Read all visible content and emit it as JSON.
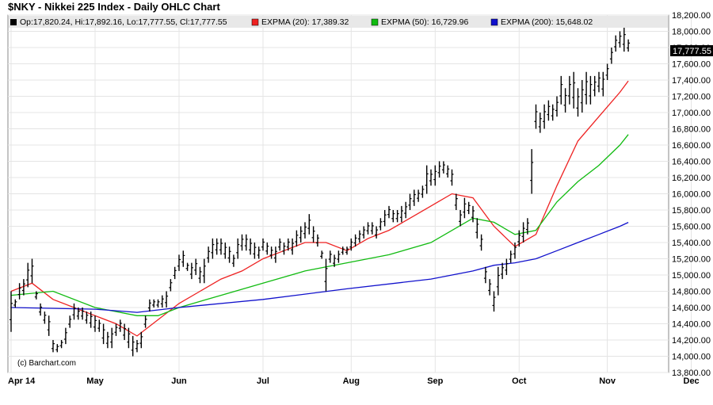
{
  "header": {
    "title": "$NKY - Nikkei 225 Index - Daily OHLC Chart"
  },
  "legend": {
    "ohlc": {
      "label": "Op:17,820.24, Hi:17,892.16, Lo:17,777.55, Cl:17,777.55",
      "color": "#000000"
    },
    "ema20": {
      "label": "EXPMA (20): 17,389.32",
      "color": "#ee2222"
    },
    "ema50": {
      "label": "EXPMA (50): 16,729.96",
      "color": "#11bb11"
    },
    "ema200": {
      "label": "EXPMA (200): 15,648.02",
      "color": "#1111cc"
    }
  },
  "last_price_label": "17,777.55",
  "copyright": "(c) Barchart.com",
  "chart_data": {
    "type": "ohlc",
    "ylim": [
      13800,
      18200
    ],
    "y_ticks": [
      {
        "value": 13800,
        "label": "13,800.00"
      },
      {
        "value": 14000,
        "label": "14,000.00"
      },
      {
        "value": 14200,
        "label": "14,200.00"
      },
      {
        "value": 14400,
        "label": "14,400.00"
      },
      {
        "value": 14600,
        "label": "14,600.00"
      },
      {
        "value": 14800,
        "label": "14,800.00"
      },
      {
        "value": 15000,
        "label": "15,000.00"
      },
      {
        "value": 15200,
        "label": "15,200.00"
      },
      {
        "value": 15400,
        "label": "15,400.00"
      },
      {
        "value": 15600,
        "label": "15,600.00"
      },
      {
        "value": 15800,
        "label": "15,800.00"
      },
      {
        "value": 16000,
        "label": "16,000.00"
      },
      {
        "value": 16200,
        "label": "16,200.00"
      },
      {
        "value": 16400,
        "label": "16,400.00"
      },
      {
        "value": 16600,
        "label": "16,600.00"
      },
      {
        "value": 16800,
        "label": "16,800.00"
      },
      {
        "value": 17000,
        "label": "17,000.00"
      },
      {
        "value": 17200,
        "label": "17,200.00"
      },
      {
        "value": 17400,
        "label": "17,400.00"
      },
      {
        "value": 17600,
        "label": "17,600.00"
      },
      {
        "value": 17800,
        "label": "17,800.00"
      },
      {
        "value": 18000,
        "label": "18,000.00"
      },
      {
        "value": 18200,
        "label": "18,200.00"
      }
    ],
    "x_ticks": [
      {
        "label": "Apr 14",
        "index": 0
      },
      {
        "label": "May",
        "index": 20
      },
      {
        "label": "Jun",
        "index": 40
      },
      {
        "label": "Jul",
        "index": 60
      },
      {
        "label": "Aug",
        "index": 81
      },
      {
        "label": "Sep",
        "index": 101
      },
      {
        "label": "Oct",
        "index": 121
      },
      {
        "label": "Nov",
        "index": 142
      },
      {
        "label": "Dec",
        "index": 162
      }
    ],
    "ohlc_points": [
      [
        0,
        14300,
        14800
      ],
      [
        1,
        14600,
        14700
      ],
      [
        2,
        14700,
        14900
      ],
      [
        3,
        14750,
        14950
      ],
      [
        4,
        14850,
        15150
      ],
      [
        5,
        14900,
        15200
      ],
      [
        6,
        14700,
        14800
      ],
      [
        7,
        14500,
        14650
      ],
      [
        8,
        14400,
        14550
      ],
      [
        9,
        14250,
        14500
      ],
      [
        10,
        14050,
        14200
      ],
      [
        11,
        14050,
        14150
      ],
      [
        12,
        14100,
        14200
      ],
      [
        13,
        14150,
        14350
      ],
      [
        14,
        14350,
        14500
      ],
      [
        15,
        14450,
        14650
      ],
      [
        16,
        14450,
        14600
      ],
      [
        17,
        14450,
        14600
      ],
      [
        18,
        14400,
        14550
      ],
      [
        19,
        14350,
        14550
      ],
      [
        20,
        14300,
        14500
      ],
      [
        21,
        14300,
        14450
      ],
      [
        22,
        14150,
        14400
      ],
      [
        23,
        14100,
        14300
      ],
      [
        24,
        14100,
        14350
      ],
      [
        25,
        14250,
        14400
      ],
      [
        26,
        14300,
        14450
      ],
      [
        27,
        14200,
        14400
      ],
      [
        28,
        14100,
        14350
      ],
      [
        29,
        14000,
        14250
      ],
      [
        30,
        14050,
        14200
      ],
      [
        31,
        14100,
        14300
      ],
      [
        32,
        14350,
        14500
      ],
      [
        33,
        14550,
        14700
      ],
      [
        34,
        14600,
        14700
      ],
      [
        35,
        14600,
        14700
      ],
      [
        36,
        14600,
        14750
      ],
      [
        37,
        14600,
        14800
      ],
      [
        38,
        14800,
        14950
      ],
      [
        39,
        14950,
        15100
      ],
      [
        40,
        15050,
        15250
      ],
      [
        41,
        15100,
        15300
      ],
      [
        42,
        15050,
        15150
      ],
      [
        43,
        14950,
        15150
      ],
      [
        44,
        15000,
        15200
      ],
      [
        45,
        14900,
        15100
      ],
      [
        46,
        14900,
        15200
      ],
      [
        47,
        15150,
        15350
      ],
      [
        48,
        15200,
        15450
      ],
      [
        49,
        15250,
        15450
      ],
      [
        50,
        15250,
        15450
      ],
      [
        51,
        15200,
        15400
      ],
      [
        52,
        15150,
        15350
      ],
      [
        53,
        15100,
        15250
      ],
      [
        54,
        15200,
        15450
      ],
      [
        55,
        15300,
        15500
      ],
      [
        56,
        15300,
        15500
      ],
      [
        57,
        15250,
        15450
      ],
      [
        58,
        15200,
        15400
      ],
      [
        59,
        15200,
        15350
      ],
      [
        60,
        15300,
        15450
      ],
      [
        61,
        15250,
        15400
      ],
      [
        62,
        15200,
        15350
      ],
      [
        63,
        15150,
        15350
      ],
      [
        64,
        15300,
        15450
      ],
      [
        65,
        15250,
        15400
      ],
      [
        66,
        15300,
        15450
      ],
      [
        67,
        15250,
        15450
      ],
      [
        68,
        15350,
        15550
      ],
      [
        69,
        15400,
        15600
      ],
      [
        70,
        15450,
        15650
      ],
      [
        71,
        15500,
        15750
      ],
      [
        72,
        15400,
        15600
      ],
      [
        73,
        15350,
        15500
      ],
      [
        74,
        15200,
        15300
      ],
      [
        75,
        14800,
        15200
      ],
      [
        76,
        15150,
        15300
      ],
      [
        77,
        15100,
        15250
      ],
      [
        78,
        15150,
        15300
      ],
      [
        79,
        15250,
        15350
      ],
      [
        80,
        15250,
        15350
      ],
      [
        81,
        15300,
        15450
      ],
      [
        82,
        15350,
        15500
      ],
      [
        83,
        15400,
        15550
      ],
      [
        84,
        15450,
        15600
      ],
      [
        85,
        15500,
        15650
      ],
      [
        86,
        15500,
        15650
      ],
      [
        87,
        15450,
        15600
      ],
      [
        88,
        15550,
        15700
      ],
      [
        89,
        15600,
        15800
      ],
      [
        90,
        15700,
        15850
      ],
      [
        91,
        15650,
        15800
      ],
      [
        92,
        15650,
        15800
      ],
      [
        93,
        15650,
        15850
      ],
      [
        94,
        15700,
        15900
      ],
      [
        95,
        15800,
        16000
      ],
      [
        96,
        15850,
        16050
      ],
      [
        97,
        15900,
        16050
      ],
      [
        98,
        15950,
        16100
      ],
      [
        99,
        16000,
        16350
      ],
      [
        100,
        16100,
        16300
      ],
      [
        101,
        16100,
        16350
      ],
      [
        102,
        16200,
        16400
      ],
      [
        103,
        16250,
        16400
      ],
      [
        104,
        16200,
        16350
      ],
      [
        105,
        16100,
        16300
      ],
      [
        106,
        15800,
        16000
      ],
      [
        107,
        15600,
        15800
      ],
      [
        108,
        15700,
        15950
      ],
      [
        109,
        15750,
        15900
      ],
      [
        110,
        15650,
        15850
      ],
      [
        111,
        15450,
        15700
      ],
      [
        112,
        15300,
        15500
      ],
      [
        113,
        14900,
        15100
      ],
      [
        114,
        14750,
        14950
      ],
      [
        115,
        14550,
        14800
      ],
      [
        116,
        14750,
        15100
      ],
      [
        117,
        14950,
        15150
      ],
      [
        118,
        15000,
        15200
      ],
      [
        119,
        15150,
        15300
      ],
      [
        120,
        15200,
        15400
      ],
      [
        121,
        15350,
        15550
      ],
      [
        122,
        15400,
        15650
      ],
      [
        123,
        15500,
        15700
      ],
      [
        124,
        16000,
        16550
      ],
      [
        125,
        16800,
        17100
      ],
      [
        126,
        16750,
        17000
      ],
      [
        127,
        16800,
        17100
      ],
      [
        128,
        16900,
        17150
      ],
      [
        129,
        16900,
        17100
      ],
      [
        130,
        16950,
        17200
      ],
      [
        131,
        17100,
        17450
      ],
      [
        132,
        17000,
        17300
      ],
      [
        133,
        17100,
        17450
      ],
      [
        134,
        17050,
        17500
      ],
      [
        135,
        16950,
        17300
      ],
      [
        136,
        17000,
        17400
      ],
      [
        137,
        17100,
        17500
      ],
      [
        138,
        17100,
        17450
      ],
      [
        139,
        17200,
        17450
      ],
      [
        140,
        17250,
        17500
      ],
      [
        141,
        17200,
        17500
      ],
      [
        142,
        17400,
        17600
      ],
      [
        143,
        17600,
        17800
      ],
      [
        144,
        17750,
        17950
      ],
      [
        145,
        17800,
        18000
      ],
      [
        146,
        17750,
        18050
      ],
      [
        147,
        17750,
        17900
      ]
    ],
    "series": [
      {
        "name": "EXPMA (20)",
        "color": "#ee2222",
        "points": [
          [
            0,
            14800
          ],
          [
            5,
            14900
          ],
          [
            10,
            14700
          ],
          [
            20,
            14500
          ],
          [
            25,
            14400
          ],
          [
            30,
            14250
          ],
          [
            35,
            14450
          ],
          [
            40,
            14650
          ],
          [
            45,
            14800
          ],
          [
            50,
            14950
          ],
          [
            55,
            15050
          ],
          [
            60,
            15200
          ],
          [
            65,
            15300
          ],
          [
            70,
            15400
          ],
          [
            75,
            15400
          ],
          [
            80,
            15300
          ],
          [
            85,
            15450
          ],
          [
            90,
            15550
          ],
          [
            95,
            15700
          ],
          [
            100,
            15850
          ],
          [
            105,
            16000
          ],
          [
            110,
            15950
          ],
          [
            115,
            15600
          ],
          [
            120,
            15350
          ],
          [
            125,
            15500
          ],
          [
            130,
            16100
          ],
          [
            135,
            16650
          ],
          [
            140,
            16950
          ],
          [
            145,
            17250
          ],
          [
            147,
            17389
          ]
        ]
      },
      {
        "name": "EXPMA (50)",
        "color": "#11bb11",
        "points": [
          [
            0,
            14750
          ],
          [
            10,
            14800
          ],
          [
            20,
            14600
          ],
          [
            30,
            14500
          ],
          [
            35,
            14500
          ],
          [
            40,
            14600
          ],
          [
            50,
            14750
          ],
          [
            60,
            14900
          ],
          [
            70,
            15050
          ],
          [
            80,
            15150
          ],
          [
            90,
            15250
          ],
          [
            100,
            15400
          ],
          [
            110,
            15700
          ],
          [
            115,
            15650
          ],
          [
            120,
            15500
          ],
          [
            125,
            15550
          ],
          [
            130,
            15900
          ],
          [
            135,
            16150
          ],
          [
            140,
            16350
          ],
          [
            145,
            16600
          ],
          [
            147,
            16730
          ]
        ]
      },
      {
        "name": "EXPMA (200)",
        "color": "#1111cc",
        "points": [
          [
            0,
            14600
          ],
          [
            20,
            14580
          ],
          [
            30,
            14540
          ],
          [
            40,
            14600
          ],
          [
            60,
            14700
          ],
          [
            80,
            14830
          ],
          [
            100,
            14950
          ],
          [
            110,
            15050
          ],
          [
            115,
            15120
          ],
          [
            120,
            15150
          ],
          [
            125,
            15200
          ],
          [
            130,
            15300
          ],
          [
            135,
            15400
          ],
          [
            140,
            15500
          ],
          [
            145,
            15600
          ],
          [
            147,
            15648
          ]
        ]
      }
    ]
  }
}
